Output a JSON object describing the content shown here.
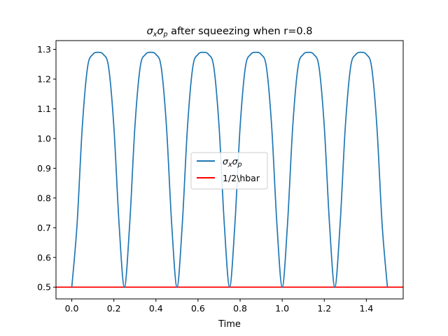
{
  "chart_data": {
    "type": "line",
    "title": {
      "prefix_symbol": "σ",
      "prefix_sub1": "x",
      "middle_symbol": "σ",
      "prefix_sub2": "p",
      "rest": " after squeezing when r=0.8"
    },
    "xlabel": "Time",
    "ylabel": "",
    "xlim": [
      -0.075,
      1.575
    ],
    "ylim": [
      0.4605,
      1.3295
    ],
    "xticks": [
      0.0,
      0.2,
      0.4,
      0.6,
      0.8,
      1.0,
      1.2,
      1.4
    ],
    "xtick_labels": [
      "0.0",
      "0.2",
      "0.4",
      "0.6",
      "0.8",
      "1.0",
      "1.2",
      "1.4"
    ],
    "yticks": [
      0.5,
      0.6,
      0.7,
      0.8,
      0.9,
      1.0,
      1.1,
      1.2,
      1.3
    ],
    "ytick_labels": [
      "0.5",
      "0.6",
      "0.7",
      "0.8",
      "0.9",
      "1.0",
      "1.1",
      "1.2",
      "1.3"
    ],
    "grid": false,
    "legend_position": "center",
    "series": [
      {
        "legend_symbol": "σ",
        "legend_sub1": "x",
        "legend_symbol2": "σ",
        "legend_sub2": "p",
        "color": "#1f77b4",
        "x": [
          0.0,
          0.025,
          0.05,
          0.075,
          0.1,
          0.125,
          0.15,
          0.175,
          0.2,
          0.225,
          0.25,
          0.275,
          0.3,
          0.325,
          0.35,
          0.375,
          0.4,
          0.425,
          0.45,
          0.475,
          0.5,
          0.525,
          0.55,
          0.575,
          0.6,
          0.625,
          0.65,
          0.675,
          0.7,
          0.725,
          0.75,
          0.775,
          0.8,
          0.825,
          0.85,
          0.875,
          0.9,
          0.925,
          0.95,
          0.975,
          1.0,
          1.025,
          1.05,
          1.075,
          1.1,
          1.125,
          1.15,
          1.175,
          1.2,
          1.225,
          1.25,
          1.275,
          1.3,
          1.325,
          1.35,
          1.375,
          1.4,
          1.425,
          1.45,
          1.475,
          1.5
        ],
        "y": [
          0.5,
          0.71,
          1.04,
          1.24,
          1.283,
          1.29,
          1.283,
          1.24,
          1.04,
          0.71,
          0.5,
          0.71,
          1.04,
          1.24,
          1.283,
          1.29,
          1.283,
          1.24,
          1.04,
          0.71,
          0.5,
          0.71,
          1.04,
          1.24,
          1.283,
          1.29,
          1.283,
          1.24,
          1.04,
          0.71,
          0.5,
          0.71,
          1.04,
          1.24,
          1.283,
          1.29,
          1.283,
          1.24,
          1.04,
          0.71,
          0.5,
          0.71,
          1.04,
          1.24,
          1.283,
          1.29,
          1.283,
          1.24,
          1.04,
          0.71,
          0.5,
          0.71,
          1.04,
          1.24,
          1.283,
          1.29,
          1.283,
          1.24,
          1.04,
          0.71,
          0.5
        ]
      },
      {
        "name": "1/2\\hbar",
        "color": "#ff0000",
        "type": "hline",
        "y": 0.5
      }
    ]
  }
}
